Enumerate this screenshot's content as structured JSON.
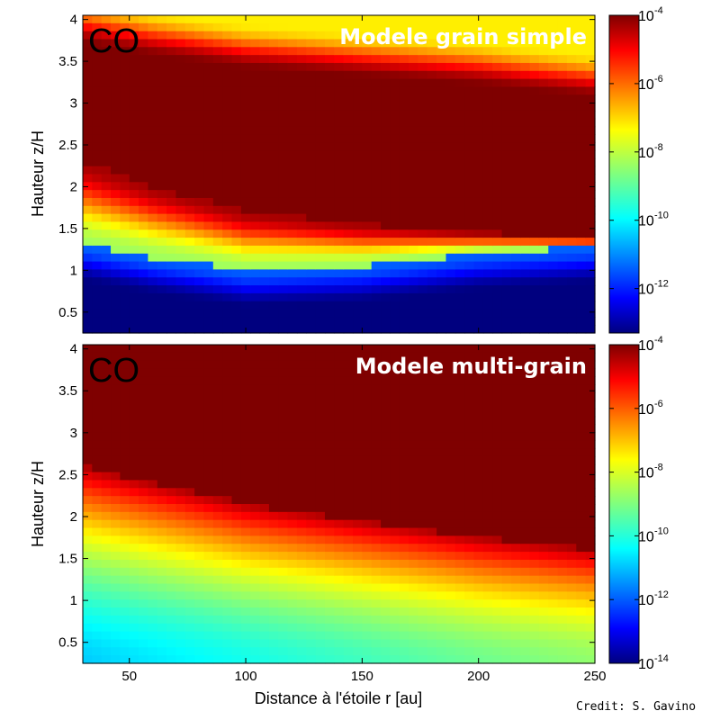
{
  "credit": "Credit: S. Gavino",
  "xlabel": "Distance à l'étoile r [au]",
  "chart_data": [
    {
      "type": "heatmap",
      "species": "CO",
      "title": "Modele grain simple",
      "xlabel": "Distance à l'étoile r [au]",
      "ylabel": "Hauteur z/H",
      "xlim": [
        30,
        250
      ],
      "ylim": [
        0.25,
        4.05
      ],
      "xticks": [],
      "yticks": [
        0.5,
        1,
        1.5,
        2,
        2.5,
        3,
        3.5,
        4
      ],
      "ytick_labels": [
        "0.5",
        "1",
        "1.5",
        "2",
        "2.5",
        "3",
        "3.5",
        "4"
      ],
      "color_scale": "log",
      "colorbar": {
        "range_log10": [
          -13.3,
          -4
        ],
        "ticks": [
          {
            "base": "10",
            "exp": "-4",
            "log": -4
          },
          {
            "base": "10",
            "exp": "-6",
            "log": -6
          },
          {
            "base": "10",
            "exp": "-8",
            "log": -8
          },
          {
            "base": "10",
            "exp": "-10",
            "log": -10
          },
          {
            "base": "10",
            "exp": "-12",
            "log": -12
          }
        ]
      },
      "profile": {
        "r": [
          30,
          60,
          100,
          150,
          200,
          250
        ],
        "upper_saturation_edge_z": [
          3.7,
          3.55,
          3.4,
          3.3,
          3.2,
          3.05
        ],
        "lower_saturation_edge_z": [
          2.3,
          2.0,
          1.7,
          1.55,
          1.45,
          1.38
        ],
        "warm_layer_bottom_z": [
          1.3,
          1.15,
          1.0,
          1.05,
          1.2,
          1.28
        ],
        "depleted_log": -11.6,
        "floor_log": -13.3
      }
    },
    {
      "type": "heatmap",
      "species": "CO",
      "title": "Modele multi-grain",
      "xlabel": "Distance à l'étoile r [au]",
      "ylabel": "Hauteur z/H",
      "xlim": [
        30,
        250
      ],
      "ylim": [
        0.25,
        4.05
      ],
      "xticks": [
        50,
        100,
        150,
        200,
        250
      ],
      "xtick_labels": [
        "50",
        "100",
        "150",
        "200",
        "250"
      ],
      "yticks": [
        0.5,
        1,
        1.5,
        2,
        2.5,
        3,
        3.5,
        4
      ],
      "ytick_labels": [
        "0.5",
        "1",
        "1.5",
        "2",
        "2.5",
        "3",
        "3.5",
        "4"
      ],
      "color_scale": "log",
      "colorbar": {
        "range_log10": [
          -14,
          -4
        ],
        "ticks": [
          {
            "base": "10",
            "exp": "-4",
            "log": -4
          },
          {
            "base": "10",
            "exp": "-6",
            "log": -6
          },
          {
            "base": "10",
            "exp": "-8",
            "log": -8
          },
          {
            "base": "10",
            "exp": "-10",
            "log": -10
          },
          {
            "base": "10",
            "exp": "-12",
            "log": -12
          },
          {
            "base": "10",
            "exp": "-14",
            "log": -14
          }
        ]
      },
      "profile": {
        "r": [
          30,
          60,
          100,
          150,
          200,
          250
        ],
        "saturation_edge_z": [
          2.6,
          2.4,
          2.15,
          1.95,
          1.75,
          1.6
        ],
        "midplane_log": [
          -10.9,
          -10.6,
          -10.2,
          -9.7,
          -9.2,
          -8.8
        ]
      }
    }
  ]
}
